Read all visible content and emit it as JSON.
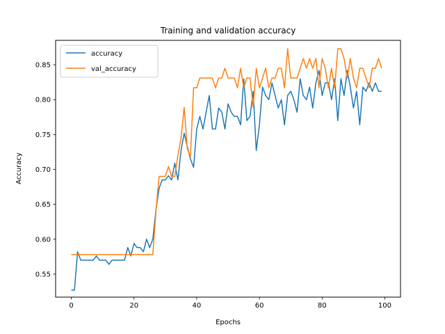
{
  "chart_data": {
    "type": "line",
    "title": "Training and validation accuracy",
    "xlabel": "Epochs",
    "ylabel": "Accuracy",
    "xlim": [
      -5,
      105
    ],
    "ylim": [
      0.517,
      0.885
    ],
    "xticks": [
      0,
      20,
      40,
      60,
      80,
      100
    ],
    "yticks": [
      0.55,
      0.6,
      0.65,
      0.7,
      0.75,
      0.8,
      0.85
    ],
    "ytick_labels": [
      "0.55",
      "0.60",
      "0.65",
      "0.70",
      "0.75",
      "0.80",
      "0.85"
    ],
    "grid": false,
    "legend_position": "upper-left",
    "series": [
      {
        "name": "accuracy",
        "color": "#1f77b4",
        "values": [
          0.527,
          0.527,
          0.582,
          0.57,
          0.57,
          0.57,
          0.57,
          0.57,
          0.576,
          0.57,
          0.57,
          0.57,
          0.564,
          0.57,
          0.57,
          0.57,
          0.57,
          0.57,
          0.588,
          0.576,
          0.594,
          0.588,
          0.588,
          0.582,
          0.6,
          0.588,
          0.6,
          0.642,
          0.673,
          0.685,
          0.685,
          0.691,
          0.685,
          0.709,
          0.685,
          0.727,
          0.752,
          0.733,
          0.715,
          0.703,
          0.758,
          0.776,
          0.758,
          0.782,
          0.806,
          0.758,
          0.758,
          0.788,
          0.782,
          0.758,
          0.794,
          0.782,
          0.776,
          0.776,
          0.764,
          0.83,
          0.77,
          0.776,
          0.812,
          0.727,
          0.764,
          0.818,
          0.806,
          0.8,
          0.824,
          0.806,
          0.788,
          0.8,
          0.764,
          0.806,
          0.812,
          0.8,
          0.782,
          0.83,
          0.806,
          0.8,
          0.818,
          0.788,
          0.824,
          0.842,
          0.806,
          0.824,
          0.824,
          0.8,
          0.83,
          0.77,
          0.83,
          0.806,
          0.842,
          0.818,
          0.788,
          0.812,
          0.764,
          0.818,
          0.812,
          0.824,
          0.812,
          0.824,
          0.812,
          0.812
        ]
      },
      {
        "name": "val_accuracy",
        "color": "#ff7f0e",
        "values": [
          0.578,
          0.578,
          0.578,
          0.578,
          0.578,
          0.578,
          0.578,
          0.578,
          0.578,
          0.578,
          0.578,
          0.578,
          0.578,
          0.578,
          0.578,
          0.578,
          0.578,
          0.578,
          0.578,
          0.578,
          0.578,
          0.578,
          0.578,
          0.578,
          0.578,
          0.578,
          0.578,
          0.64,
          0.69,
          0.69,
          0.69,
          0.704,
          0.69,
          0.69,
          0.72,
          0.745,
          0.789,
          0.73,
          0.718,
          0.817,
          0.817,
          0.831,
          0.831,
          0.831,
          0.831,
          0.831,
          0.817,
          0.831,
          0.831,
          0.845,
          0.831,
          0.831,
          0.831,
          0.817,
          0.845,
          0.817,
          0.831,
          0.831,
          0.789,
          0.845,
          0.817,
          0.831,
          0.845,
          0.817,
          0.831,
          0.831,
          0.845,
          0.845,
          0.817,
          0.873,
          0.831,
          0.831,
          0.831,
          0.845,
          0.859,
          0.845,
          0.859,
          0.845,
          0.859,
          0.817,
          0.859,
          0.845,
          0.817,
          0.845,
          0.817,
          0.873,
          0.873,
          0.859,
          0.831,
          0.859,
          0.831,
          0.817,
          0.845,
          0.845,
          0.831,
          0.817,
          0.845,
          0.845,
          0.859,
          0.845
        ]
      }
    ]
  }
}
